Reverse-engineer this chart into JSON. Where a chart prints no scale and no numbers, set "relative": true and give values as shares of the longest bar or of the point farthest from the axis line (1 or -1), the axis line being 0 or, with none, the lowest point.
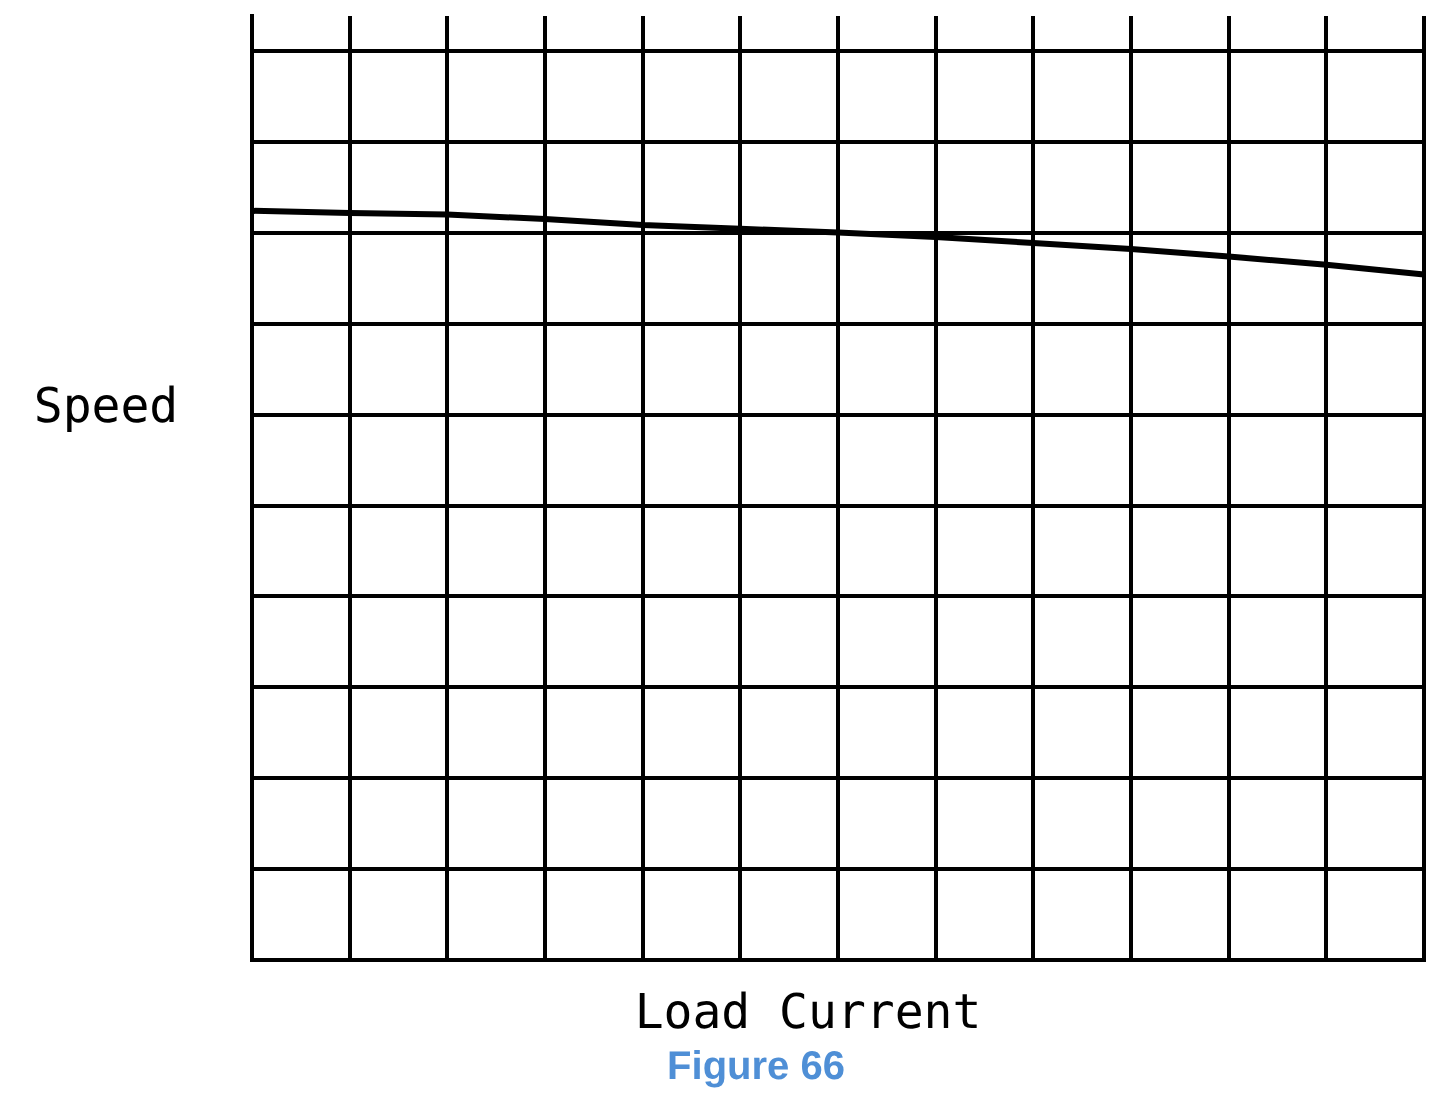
{
  "chart_data": {
    "type": "line",
    "title": "Figure 66",
    "xlabel": "Load Current",
    "ylabel": "Speed",
    "relative": true,
    "grid": true,
    "legend": false,
    "marker": "none",
    "line_style": "solid",
    "categories": [
      null,
      null,
      null,
      null,
      null,
      null,
      null,
      null,
      null,
      null,
      null,
      null,
      null
    ],
    "series": [
      {
        "color": "#000000",
        "values": [
          1.0,
          0.997,
          0.995,
          0.989,
          0.981,
          0.976,
          0.971,
          0.965,
          0.957,
          0.949,
          0.939,
          0.928,
          0.915
        ]
      }
    ]
  }
}
